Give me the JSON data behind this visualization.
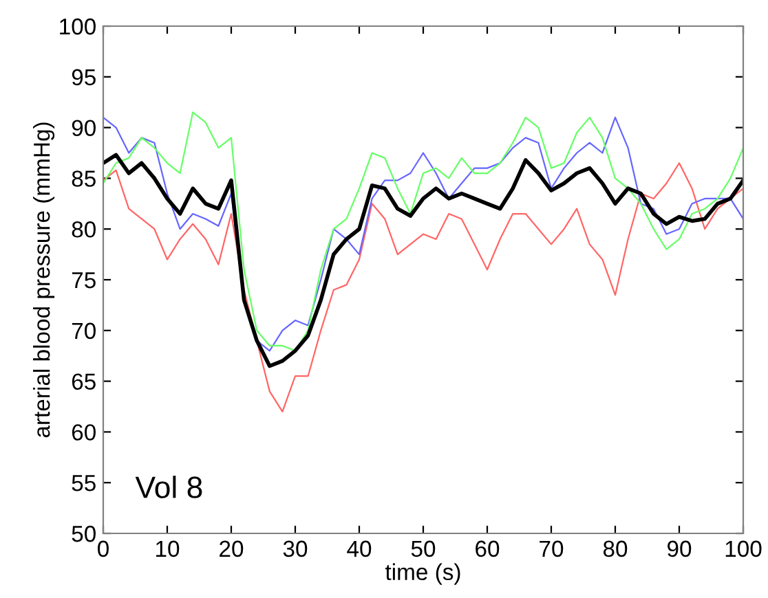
{
  "chart_data": {
    "type": "line",
    "xlabel": "time (s)",
    "ylabel": "arterial blood pressure (mmHg)",
    "annotations": [
      "Vol 8"
    ],
    "x": [
      0,
      2,
      4,
      6,
      8,
      10,
      12,
      14,
      16,
      18,
      20,
      22,
      24,
      26,
      28,
      30,
      32,
      34,
      36,
      38,
      40,
      42,
      44,
      46,
      48,
      50,
      52,
      54,
      56,
      58,
      60,
      62,
      64,
      66,
      68,
      70,
      72,
      74,
      76,
      78,
      80,
      82,
      84,
      86,
      88,
      90,
      92,
      94,
      96,
      98,
      100
    ],
    "series": [
      {
        "color": "#ff6666",
        "values": [
          84.8,
          85.8,
          82,
          81,
          80,
          77,
          79,
          80.5,
          79,
          76.5,
          81.5,
          74,
          69,
          64,
          62,
          65.5,
          65.5,
          70,
          74,
          74.5,
          77,
          82.5,
          81,
          77.5,
          78.5,
          79.5,
          79,
          81.5,
          81,
          78.5,
          76,
          79,
          81.5,
          81.5,
          80,
          78.5,
          80,
          82,
          78.5,
          77,
          73.5,
          79,
          83.5,
          83,
          84.5,
          86.5,
          84,
          80,
          82,
          83,
          84
        ]
      },
      {
        "color": "#6666ff",
        "values": [
          91,
          90,
          87.5,
          89,
          88.5,
          83.5,
          80,
          81.5,
          81,
          80.3,
          83.5,
          73,
          69,
          68,
          70,
          71,
          70.5,
          75,
          80,
          79,
          77.5,
          83,
          84.8,
          84.8,
          85.5,
          87.5,
          85.5,
          83,
          84.5,
          86,
          86,
          86.5,
          88,
          89,
          88.5,
          84,
          86,
          87.5,
          88.5,
          87.5,
          91,
          88,
          82.5,
          82,
          79.5,
          80,
          82.5,
          83,
          83,
          83,
          81
        ]
      },
      {
        "color": "#66ff66",
        "values": [
          84.5,
          86.5,
          87,
          89,
          88,
          86.5,
          85.5,
          91.5,
          90.5,
          88,
          89,
          76,
          70,
          68.5,
          68.5,
          68,
          70,
          76,
          80,
          81,
          84,
          87.5,
          87,
          84,
          81.5,
          85.5,
          86,
          85,
          87,
          85.5,
          85.5,
          86.5,
          88.5,
          91,
          90,
          86,
          86.5,
          89.5,
          91,
          89,
          85,
          84,
          82.5,
          80,
          78,
          79,
          81.5,
          82,
          83,
          85,
          88
        ]
      },
      {
        "color": "#000000",
        "values": [
          86.5,
          87.3,
          85.5,
          86.5,
          85,
          83,
          81.5,
          84,
          82.5,
          82,
          84.8,
          73,
          69,
          66.5,
          67,
          68,
          69.5,
          73,
          77.5,
          79,
          80,
          84.3,
          84,
          82,
          81.3,
          83,
          84,
          83,
          83.5,
          83,
          82.5,
          82,
          84,
          86.8,
          85.5,
          83.8,
          84.5,
          85.5,
          86,
          84.5,
          82.5,
          84,
          83.5,
          81.5,
          80.5,
          81.2,
          80.8,
          81,
          82.5,
          83,
          84.8
        ]
      }
    ],
    "xlim": [
      0,
      100
    ],
    "ylim": [
      50,
      100
    ],
    "xticks": [
      0,
      10,
      20,
      30,
      40,
      50,
      60,
      70,
      80,
      90,
      100
    ],
    "yticks": [
      50,
      55,
      60,
      65,
      70,
      75,
      80,
      85,
      90,
      95,
      100
    ],
    "grid": false,
    "legend": false,
    "marker": "none",
    "line_style": "solid"
  }
}
